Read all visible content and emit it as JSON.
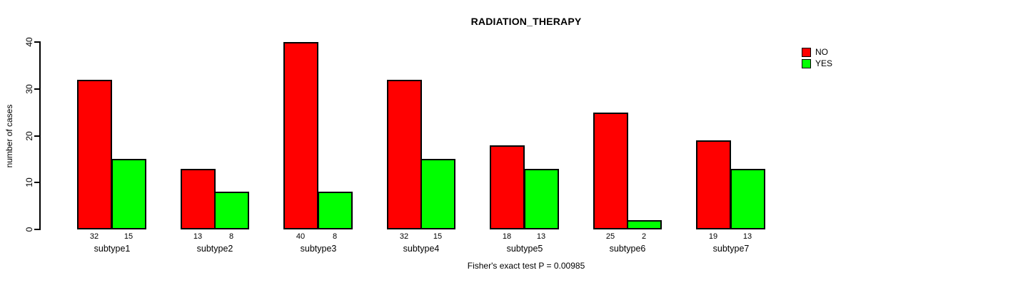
{
  "title": "RADIATION_THERAPY",
  "ylabel": "number of cases",
  "caption": "Fisher's exact test P = 0.00985",
  "legend": {
    "items": [
      {
        "label": "NO",
        "color": "#ff0000"
      },
      {
        "label": "YES",
        "color": "#00ff00"
      }
    ]
  },
  "colors": {
    "no": "#ff0000",
    "yes": "#00ff00",
    "axis": "#000000",
    "background": "#ffffff"
  },
  "chart_data": {
    "type": "bar",
    "title": "RADIATION_THERAPY",
    "xlabel": "",
    "ylabel": "number of cases",
    "categories": [
      "subtype1",
      "subtype2",
      "subtype3",
      "subtype4",
      "subtype5",
      "subtype6",
      "subtype7"
    ],
    "series": [
      {
        "name": "NO",
        "color": "#ff0000",
        "values": [
          32,
          13,
          40,
          32,
          18,
          25,
          19
        ]
      },
      {
        "name": "YES",
        "color": "#00ff00",
        "values": [
          15,
          8,
          8,
          15,
          13,
          2,
          13
        ]
      }
    ],
    "ylim": [
      0,
      40
    ],
    "yticks": [
      0,
      10,
      20,
      30,
      40
    ],
    "grid": false,
    "legend_position": "top-right",
    "bar_value_labels": true,
    "annotation": "Fisher's exact test P = 0.00985"
  }
}
